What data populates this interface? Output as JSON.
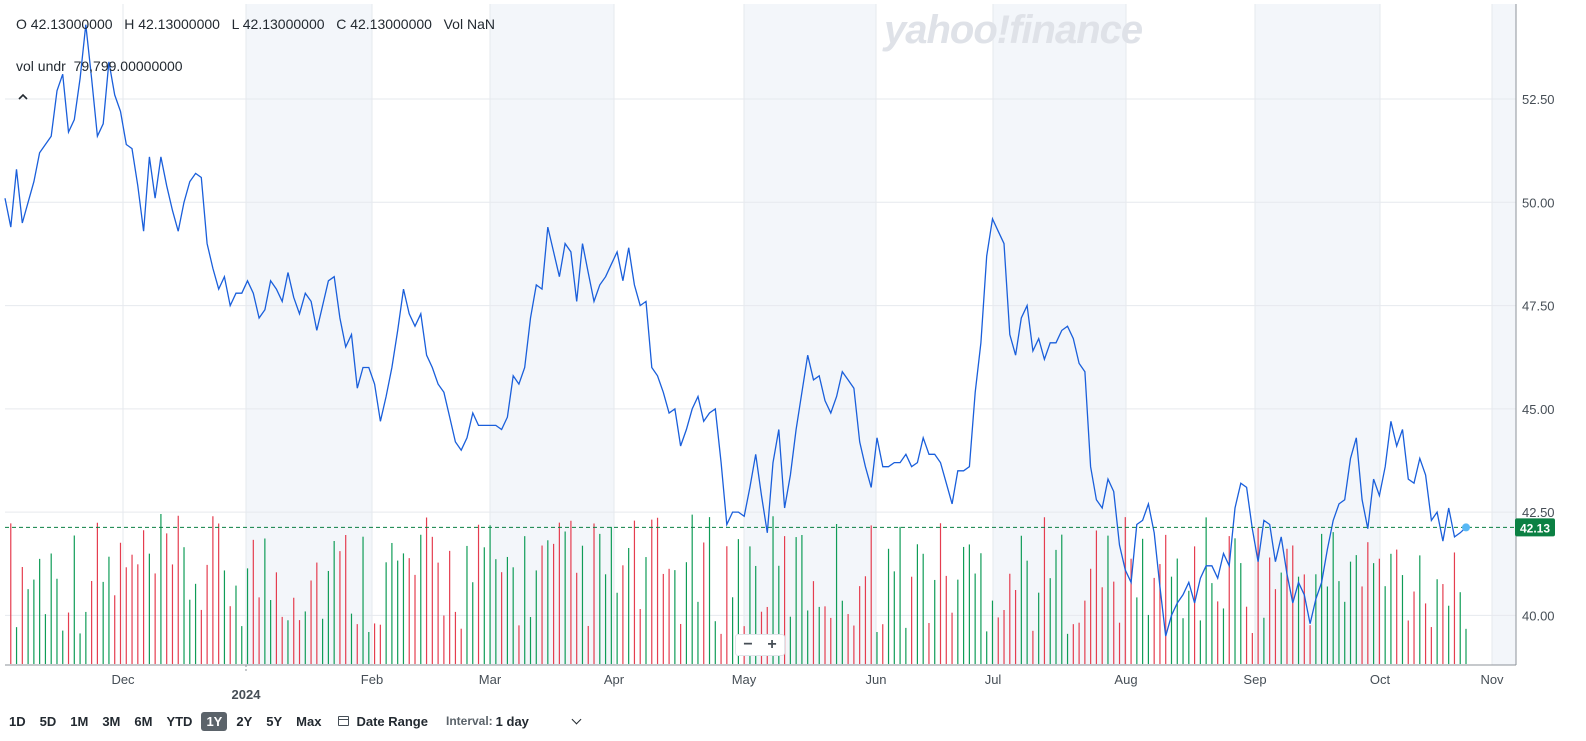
{
  "ohlc": "O 42.13000000   H 42.13000000   L 42.13000000   C 42.13000000   Vol NaN",
  "vol_undr": "vol undr  79,799.00000000",
  "watermark": "yahoo!finance",
  "zoom": {
    "minus": "−",
    "plus": "+"
  },
  "range_buttons": [
    "1D",
    "5D",
    "1M",
    "3M",
    "6M",
    "YTD",
    "1Y",
    "2Y",
    "5Y",
    "Max"
  ],
  "active_range": "1Y",
  "date_range_label": "Date Range",
  "interval_label": "Interval:",
  "interval_value": "1 day",
  "colors": {
    "line": "#1a5fdb",
    "vol_up": "#0f9c57",
    "vol_down": "#e53d4f",
    "last_badge": "#0b8043",
    "last_dot": "#58b8f5",
    "shade": "#f3f6fa"
  },
  "chart_data": {
    "type": "line",
    "y_axis_position": "right",
    "ylim": [
      38.8,
      54.8
    ],
    "y_ticks": [
      "52.50",
      "50.00",
      "47.50",
      "45.00",
      "42.50",
      "40.00"
    ],
    "x_ticks": [
      "Dec",
      "2024",
      "Feb",
      "Mar",
      "Apr",
      "May",
      "Jun",
      "Jul",
      "Aug",
      "Sep",
      "Oct",
      "Nov"
    ],
    "grid": true,
    "last_price": "42.13",
    "series": [
      {
        "values": [
          50.1,
          49.4,
          50.8,
          49.5,
          50.0,
          50.5,
          51.2,
          51.4,
          51.6,
          52.7,
          53.1,
          51.7,
          52.0,
          53.0,
          54.3,
          53.0,
          51.6,
          51.9,
          53.4,
          52.6,
          52.2,
          51.4,
          51.3,
          50.4,
          49.3,
          51.1,
          50.1,
          51.1,
          50.4,
          49.8,
          49.3,
          50.0,
          50.5,
          50.7,
          50.6,
          49.0,
          48.4,
          47.9,
          48.2,
          47.5,
          47.8,
          47.8,
          48.1,
          47.8,
          47.2,
          47.4,
          48.1,
          47.9,
          47.6,
          48.3,
          47.7,
          47.3,
          47.8,
          47.6,
          46.9,
          47.5,
          48.1,
          48.2,
          47.2,
          46.5,
          46.8,
          45.5,
          46.0,
          46.0,
          45.6,
          44.7,
          45.3,
          46.0,
          46.9,
          47.9,
          47.3,
          47.0,
          47.3,
          46.3,
          46.0,
          45.6,
          45.4,
          44.8,
          44.2,
          44.0,
          44.3,
          44.9,
          44.6,
          44.6,
          44.6,
          44.6,
          44.5,
          44.8,
          45.8,
          45.6,
          46.0,
          47.2,
          48.0,
          47.9,
          49.4,
          48.8,
          48.2,
          49.0,
          48.8,
          47.6,
          49.0,
          48.3,
          47.6,
          48.0,
          48.2,
          48.5,
          48.8,
          48.1,
          48.9,
          48.0,
          47.5,
          47.6,
          46.0,
          45.8,
          45.4,
          44.9,
          45.0,
          44.1,
          44.5,
          45.0,
          45.3,
          44.7,
          44.9,
          45.0,
          43.7,
          42.2,
          42.5,
          42.5,
          42.4,
          43.1,
          43.9,
          42.9,
          42.0,
          43.7,
          44.5,
          42.6,
          43.4,
          44.5,
          45.4,
          46.3,
          45.7,
          45.8,
          45.2,
          44.9,
          45.3,
          45.9,
          45.7,
          45.5,
          44.2,
          43.6,
          43.1,
          44.3,
          43.6,
          43.6,
          43.7,
          43.7,
          43.9,
          43.6,
          43.7,
          44.3,
          43.9,
          43.9,
          43.7,
          43.2,
          42.7,
          43.5,
          43.5,
          43.6,
          45.4,
          46.6,
          48.7,
          49.6,
          49.3,
          49.0,
          46.8,
          46.3,
          47.2,
          47.5,
          46.4,
          46.7,
          46.2,
          46.6,
          46.6,
          46.9,
          47.0,
          46.7,
          46.1,
          45.9,
          43.6,
          42.8,
          42.6,
          43.3,
          43.0,
          41.7,
          41.1,
          40.8,
          42.2,
          42.3,
          42.7,
          42.0,
          40.7,
          39.5,
          40.0,
          40.3,
          40.5,
          40.8,
          40.3,
          40.9,
          41.2,
          41.2,
          40.9,
          41.5,
          41.2,
          42.6,
          43.2,
          43.1,
          42.1,
          41.3,
          42.3,
          42.2,
          41.3,
          41.9,
          41.0,
          40.3,
          40.8,
          40.5,
          39.8,
          40.4,
          40.8,
          41.6,
          42.3,
          42.7,
          42.8,
          43.8,
          44.3,
          42.8,
          42.1,
          43.3,
          42.9,
          43.6,
          44.7,
          44.1,
          44.5,
          43.3,
          43.2,
          43.8,
          43.4,
          42.3,
          42.5,
          41.8,
          42.6,
          41.9,
          42.0,
          42.13
        ]
      }
    ],
    "volume_ticks": "volume bars shown as green (up) and red (down) vertical lines"
  }
}
